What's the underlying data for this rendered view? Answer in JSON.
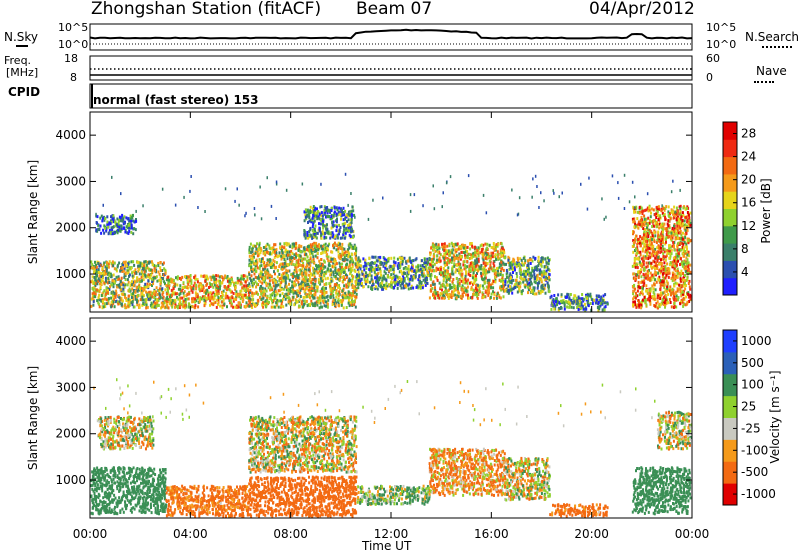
{
  "header": {
    "station": "Zhongshan Station (fitACF)",
    "beam": "Beam 07",
    "date": "04/Apr/2012"
  },
  "noise_panel": {
    "left_label": "N.Sky",
    "right_label": "N.Search",
    "left_ticks": [
      "10^5",
      "10^0"
    ],
    "right_ticks": [
      "10^5",
      "10^0"
    ]
  },
  "freq_panel": {
    "left_label_1": "Freq.",
    "left_label_2": "[MHz]",
    "left_ticks": [
      "18",
      "8"
    ],
    "right_label": "Nave",
    "right_ticks": [
      "60",
      "0"
    ]
  },
  "cpid": {
    "label": "CPID",
    "value": "normal (fast stereo) 153"
  },
  "colors": {
    "power_scale": [
      "#1f1fff",
      "#2b4fb0",
      "#3a7f6a",
      "#3f9a4a",
      "#8fd12f",
      "#e6d41a",
      "#f59a1a",
      "#f36a12",
      "#ef2a12",
      "#e00000"
    ],
    "velocity_scale": [
      "#e00000",
      "#f36a12",
      "#f59a1a",
      "#c9c9c0",
      "#8fd12f",
      "#3a8f55",
      "#2b60b8",
      "#1f3fff"
    ]
  },
  "chart_data": [
    {
      "type": "heatmap",
      "quantity": "Power",
      "xlabel": "",
      "ylabel": "Slant Range [km]",
      "x_ticks": [
        "00:00",
        "04:00",
        "08:00",
        "12:00",
        "16:00",
        "20:00",
        "00:00"
      ],
      "y_ticks": [
        1000,
        2000,
        3000,
        4000
      ],
      "ylim": [
        180,
        4500
      ],
      "xlim_hours": [
        0,
        24
      ],
      "colorbar_label": "Power [dB]",
      "colorbar_ticks": [
        "4",
        "8",
        "12",
        "16",
        "20",
        "24",
        "28"
      ],
      "colorbar_range": [
        0,
        30
      ],
      "scatter_regions": [
        {
          "t": [
            0.0,
            3.0
          ],
          "r": [
            300,
            1300
          ],
          "v": 14
        },
        {
          "t": [
            0.2,
            1.8
          ],
          "r": [
            1900,
            2300
          ],
          "v": 6
        },
        {
          "t": [
            3.0,
            6.3
          ],
          "r": [
            300,
            1000
          ],
          "v": 18
        },
        {
          "t": [
            6.3,
            10.6
          ],
          "r": [
            300,
            1700
          ],
          "v": 15
        },
        {
          "t": [
            8.5,
            10.5
          ],
          "r": [
            1800,
            2500
          ],
          "v": 8
        },
        {
          "t": [
            10.6,
            13.5
          ],
          "r": [
            700,
            1400
          ],
          "v": 10
        },
        {
          "t": [
            13.5,
            16.5
          ],
          "r": [
            500,
            1700
          ],
          "v": 17
        },
        {
          "t": [
            16.5,
            18.3
          ],
          "r": [
            600,
            1400
          ],
          "v": 11
        },
        {
          "t": [
            18.3,
            20.6
          ],
          "r": [
            250,
            600
          ],
          "v": 8
        },
        {
          "t": [
            21.6,
            23.9
          ],
          "r": [
            300,
            2500
          ],
          "v": 20
        }
      ]
    },
    {
      "type": "heatmap",
      "quantity": "Velocity",
      "xlabel": "Time UT",
      "ylabel": "Slant Range [km]",
      "x_ticks": [
        "00:00",
        "04:00",
        "08:00",
        "12:00",
        "16:00",
        "20:00",
        "00:00"
      ],
      "y_ticks": [
        1000,
        2000,
        3000,
        4000
      ],
      "ylim": [
        180,
        4500
      ],
      "xlim_hours": [
        0,
        24
      ],
      "colorbar_label": "Velocity [m s⁻¹]",
      "colorbar_ticks": [
        "1000",
        "500",
        "100",
        "25",
        "-25",
        "-100",
        "-500",
        "-1000"
      ],
      "colorbar_range": [
        -1000,
        1000
      ],
      "scatter_regions": [
        {
          "t": [
            0.0,
            3.0
          ],
          "r": [
            300,
            1300
          ],
          "v": 300
        },
        {
          "t": [
            0.3,
            2.5
          ],
          "r": [
            1700,
            2400
          ],
          "v": 0
        },
        {
          "t": [
            3.0,
            6.3
          ],
          "r": [
            250,
            900
          ],
          "v": -200
        },
        {
          "t": [
            6.3,
            10.6
          ],
          "r": [
            1200,
            2400
          ],
          "v": 0
        },
        {
          "t": [
            6.3,
            10.6
          ],
          "r": [
            250,
            1100
          ],
          "v": -300
        },
        {
          "t": [
            10.6,
            13.5
          ],
          "r": [
            500,
            900
          ],
          "v": 100
        },
        {
          "t": [
            13.5,
            16.5
          ],
          "r": [
            700,
            1700
          ],
          "v": -100
        },
        {
          "t": [
            16.5,
            18.3
          ],
          "r": [
            600,
            1500
          ],
          "v": 0
        },
        {
          "t": [
            18.3,
            20.6
          ],
          "r": [
            250,
            500
          ],
          "v": -200
        },
        {
          "t": [
            21.6,
            23.9
          ],
          "r": [
            300,
            1300
          ],
          "v": 300
        },
        {
          "t": [
            22.6,
            23.9
          ],
          "r": [
            1700,
            2500
          ],
          "v": 0
        }
      ]
    }
  ]
}
